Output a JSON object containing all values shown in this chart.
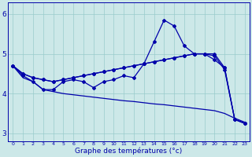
{
  "title": "Graphe des températures (°c)",
  "background_color": "#cce8e8",
  "grid_color": "#99cccc",
  "line_color": "#0000aa",
  "xlim_min": -0.5,
  "xlim_max": 23.5,
  "ylim_min": 2.8,
  "ylim_max": 6.3,
  "yticks": [
    3,
    4,
    5,
    6
  ],
  "xticks": [
    0,
    1,
    2,
    3,
    4,
    5,
    6,
    7,
    8,
    9,
    10,
    11,
    12,
    13,
    14,
    15,
    16,
    17,
    18,
    19,
    20,
    21,
    22,
    23
  ],
  "hours": [
    0,
    1,
    2,
    3,
    4,
    5,
    6,
    7,
    8,
    9,
    10,
    11,
    12,
    13,
    14,
    15,
    16,
    17,
    18,
    19,
    20,
    21,
    22,
    23
  ],
  "line_spike": [
    4.7,
    4.45,
    4.3,
    4.1,
    4.1,
    4.3,
    4.35,
    4.3,
    4.15,
    4.3,
    4.35,
    4.45,
    4.4,
    4.75,
    5.3,
    5.85,
    5.7,
    5.2,
    5.0,
    5.0,
    4.85,
    4.65,
    3.35,
    3.25
  ],
  "line_diag1": [
    4.7,
    4.5,
    4.4,
    4.35,
    4.3,
    4.35,
    4.4,
    4.45,
    4.5,
    4.55,
    4.6,
    4.65,
    4.7,
    4.75,
    4.8,
    4.85,
    4.9,
    4.95,
    5.0,
    5.0,
    5.0,
    4.65,
    3.35,
    3.25
  ],
  "line_diag2": [
    4.7,
    4.5,
    4.4,
    4.35,
    4.3,
    4.35,
    4.4,
    4.45,
    4.5,
    4.55,
    4.6,
    4.65,
    4.7,
    4.75,
    4.8,
    4.85,
    4.9,
    4.95,
    5.0,
    5.0,
    4.95,
    4.6,
    3.35,
    3.25
  ],
  "line_low": [
    4.7,
    4.4,
    4.3,
    4.1,
    4.05,
    4.0,
    3.97,
    3.94,
    3.91,
    3.88,
    3.85,
    3.82,
    3.8,
    3.77,
    3.74,
    3.72,
    3.69,
    3.66,
    3.63,
    3.6,
    3.57,
    3.5,
    3.38,
    3.28
  ]
}
